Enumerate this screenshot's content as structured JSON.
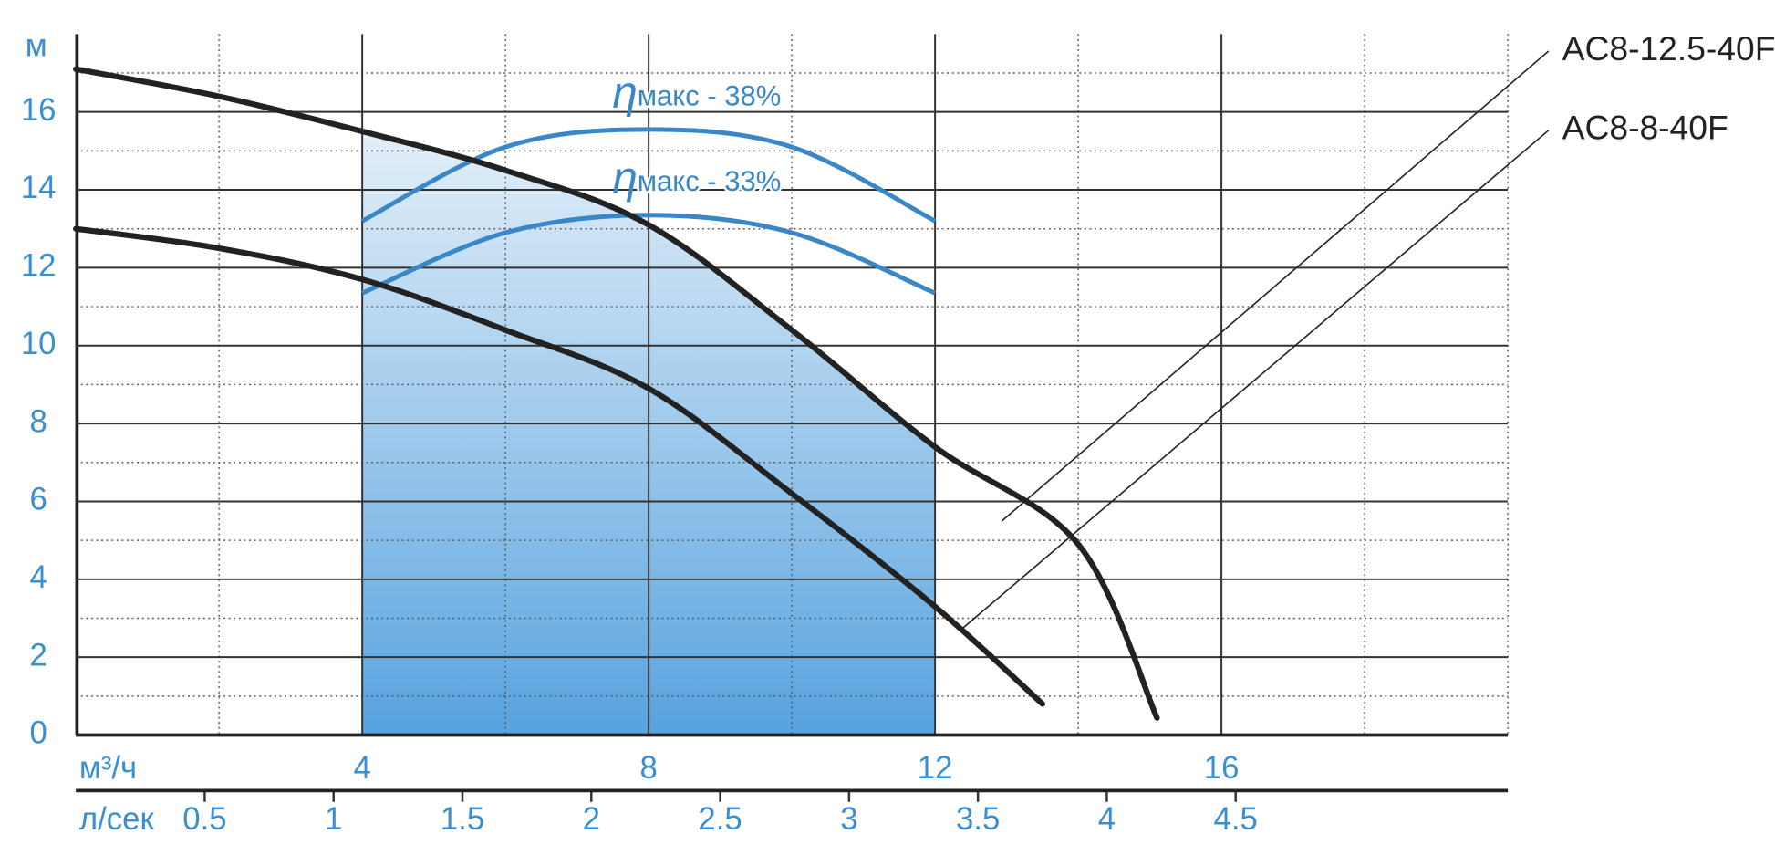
{
  "chart_data": {
    "type": "line",
    "y_label": "м",
    "x_label": "м³/ч",
    "x2_label": "л/сек",
    "xlim": [
      0,
      20
    ],
    "xticks": [
      4,
      8,
      12,
      16
    ],
    "xminor": [
      2,
      6,
      10,
      14,
      18
    ],
    "x2lim": [
      0,
      5.556
    ],
    "x2ticks": [
      0.5,
      1,
      1.5,
      2,
      2.5,
      3,
      3.5,
      4,
      4.5
    ],
    "ylim": [
      0,
      18
    ],
    "yticks": [
      0,
      2,
      4,
      6,
      8,
      10,
      12,
      14,
      16
    ],
    "yminor": [
      1,
      3,
      5,
      7,
      9,
      11,
      13,
      15,
      17
    ],
    "grid": true,
    "operating_range": [
      4,
      12
    ],
    "series": [
      {
        "name": "AC8-12.5-40F",
        "color": "#222222",
        "x": [
          0,
          2,
          4,
          6,
          8,
          10,
          12,
          14,
          15.1
        ],
        "values": [
          17.1,
          16.4,
          15.5,
          14.5,
          13.1,
          10.4,
          7.4,
          4.9,
          0.44
        ]
      },
      {
        "name": "AC8-8-40F",
        "color": "#222222",
        "x": [
          0,
          2,
          4,
          6,
          8,
          10,
          12,
          13.5
        ],
        "values": [
          13,
          12.5,
          11.7,
          10.4,
          8.9,
          6.2,
          3.3,
          0.8
        ]
      }
    ],
    "efficiency": [
      {
        "symbol": "η",
        "label": "макс - 38%",
        "color": "#3a87c8",
        "x": [
          4,
          6,
          8,
          10,
          12
        ],
        "values": [
          13.2,
          15.1,
          15.55,
          15.1,
          13.2
        ]
      },
      {
        "symbol": "η",
        "label": "макс - 33%",
        "color": "#3a87c8",
        "x": [
          4,
          6,
          8,
          10,
          12
        ],
        "values": [
          11.35,
          12.9,
          13.35,
          12.9,
          11.35
        ]
      }
    ]
  }
}
